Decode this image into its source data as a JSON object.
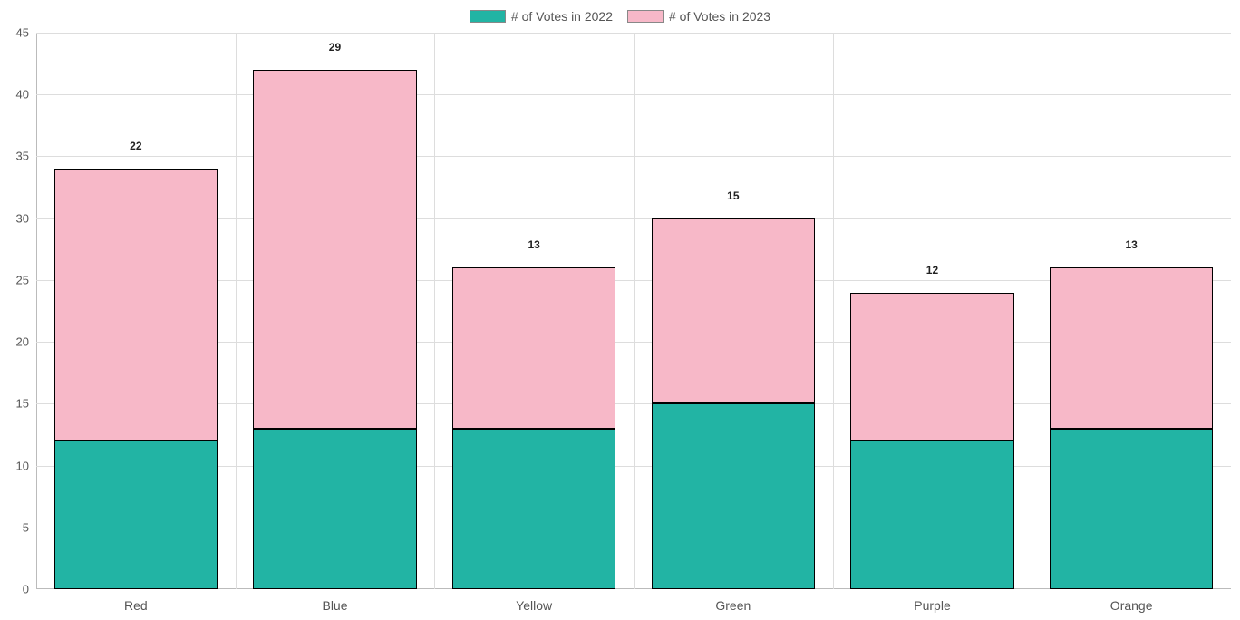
{
  "chart": {
    "type": "stacked-bar",
    "background_color": "#ffffff",
    "grid_color": "#dddddd",
    "axis_color": "#bbbbbb",
    "text_color": "#555555",
    "label_color": "#222222",
    "bar_border_color": "#000000",
    "tick_fontsize": 13,
    "x_label_fontsize": 14,
    "data_label_fontsize": 12,
    "data_label_fontweight": "bold",
    "legend_fontsize": 14,
    "legend": [
      {
        "label": "# of Votes in 2022",
        "color": "#22b4a4"
      },
      {
        "label": "# of Votes in 2023",
        "color": "#f7b8c8"
      }
    ],
    "y": {
      "min": 0,
      "max": 45,
      "ticks": [
        0,
        5,
        10,
        15,
        20,
        25,
        30,
        35,
        40,
        45
      ]
    },
    "categories": [
      "Red",
      "Blue",
      "Yellow",
      "Green",
      "Purple",
      "Orange"
    ],
    "series": [
      {
        "key": "votes_2022",
        "color": "#22b4a4",
        "values": [
          12,
          13,
          13,
          15,
          12,
          13
        ]
      },
      {
        "key": "votes_2023",
        "color": "#f7b8c8",
        "values": [
          22,
          29,
          13,
          15,
          12,
          13
        ]
      }
    ],
    "bar_width_ratio": 0.82
  }
}
